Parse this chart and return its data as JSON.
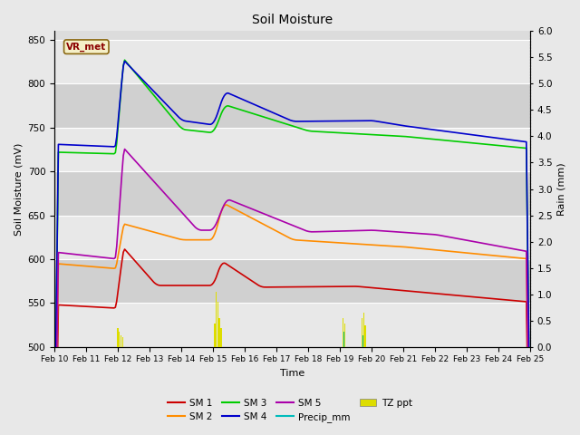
{
  "title": "Soil Moisture",
  "xlabel": "Time",
  "ylabel_left": "Soil Moisture (mV)",
  "ylabel_right": "Rain (mm)",
  "ylim_left": [
    500,
    860
  ],
  "ylim_right": [
    0.0,
    6.0
  ],
  "yticks_left": [
    500,
    550,
    600,
    650,
    700,
    750,
    800,
    850
  ],
  "yticks_right": [
    0.0,
    0.5,
    1.0,
    1.5,
    2.0,
    2.5,
    3.0,
    3.5,
    4.0,
    4.5,
    5.0,
    5.5,
    6.0
  ],
  "xtick_labels": [
    "Feb 10",
    "Feb 11",
    "Feb 12",
    "Feb 13",
    "Feb 14",
    "Feb 15",
    "Feb 16",
    "Feb 17",
    "Feb 18",
    "Feb 19",
    "Feb 20",
    "Feb 21",
    "Feb 22",
    "Feb 23",
    "Feb 24",
    "Feb 25"
  ],
  "station_label": "VR_met",
  "fig_bg": "#e8e8e8",
  "plot_bg": "#dcdcdc",
  "stripe1_bg": "#e8e8e8",
  "stripe2_bg": "#d0d0d0",
  "colors": {
    "SM1": "#cc0000",
    "SM2": "#ff8c00",
    "SM3": "#00cc00",
    "SM4": "#0000cc",
    "SM5": "#aa00aa",
    "Precip": "#00bbbb",
    "TZppt": "#dddd00"
  }
}
